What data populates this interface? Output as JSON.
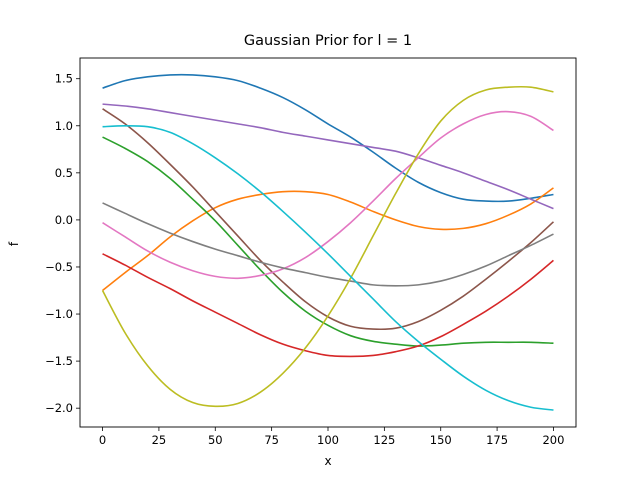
{
  "chart_data": {
    "type": "line",
    "title": "Gaussian Prior for l = 1",
    "xlabel": "x",
    "ylabel": "f",
    "xlim": [
      -10,
      210
    ],
    "ylim": [
      -2.2,
      1.72
    ],
    "xticks": [
      0,
      25,
      50,
      75,
      100,
      125,
      150,
      175,
      200
    ],
    "yticks": [
      -2.0,
      -1.5,
      -1.0,
      -0.5,
      0.0,
      0.5,
      1.0,
      1.5
    ],
    "ytick_labels": [
      "−2.0",
      "−1.5",
      "−1.0",
      "−0.5",
      "0.0",
      "0.5",
      "1.0",
      "1.5"
    ],
    "grid": false,
    "legend": "none",
    "x": [
      0,
      10,
      20,
      30,
      40,
      50,
      60,
      70,
      80,
      90,
      100,
      110,
      120,
      130,
      140,
      150,
      160,
      170,
      180,
      190,
      200
    ],
    "series": [
      {
        "color": "#1f77b4",
        "values": [
          1.4,
          1.48,
          1.52,
          1.54,
          1.54,
          1.52,
          1.48,
          1.4,
          1.3,
          1.17,
          1.02,
          0.88,
          0.72,
          0.55,
          0.4,
          0.29,
          0.22,
          0.2,
          0.2,
          0.23,
          0.27
        ]
      },
      {
        "color": "#ff7f0e",
        "values": [
          -0.75,
          -0.56,
          -0.38,
          -0.18,
          -0.01,
          0.13,
          0.22,
          0.27,
          0.3,
          0.3,
          0.27,
          0.19,
          0.09,
          0.0,
          -0.07,
          -0.1,
          -0.09,
          -0.04,
          0.05,
          0.17,
          0.34
        ]
      },
      {
        "color": "#2ca02c",
        "values": [
          0.88,
          0.76,
          0.62,
          0.44,
          0.22,
          -0.01,
          -0.27,
          -0.53,
          -0.77,
          -0.97,
          -1.12,
          -1.23,
          -1.29,
          -1.32,
          -1.34,
          -1.33,
          -1.31,
          -1.3,
          -1.3,
          -1.3,
          -1.31
        ]
      },
      {
        "color": "#d62728",
        "values": [
          -0.36,
          -0.48,
          -0.61,
          -0.73,
          -0.86,
          -0.98,
          -1.1,
          -1.22,
          -1.32,
          -1.39,
          -1.44,
          -1.45,
          -1.44,
          -1.4,
          -1.34,
          -1.24,
          -1.11,
          -0.97,
          -0.81,
          -0.63,
          -0.43
        ]
      },
      {
        "color": "#9467bd",
        "values": [
          1.23,
          1.21,
          1.18,
          1.14,
          1.1,
          1.06,
          1.02,
          0.98,
          0.93,
          0.89,
          0.85,
          0.81,
          0.77,
          0.73,
          0.66,
          0.58,
          0.5,
          0.41,
          0.32,
          0.22,
          0.12
        ]
      },
      {
        "color": "#8c564b",
        "values": [
          1.18,
          1.02,
          0.82,
          0.59,
          0.35,
          0.09,
          -0.17,
          -0.43,
          -0.66,
          -0.87,
          -1.03,
          -1.13,
          -1.16,
          -1.15,
          -1.08,
          -0.96,
          -0.81,
          -0.63,
          -0.44,
          -0.24,
          -0.02
        ]
      },
      {
        "color": "#e377c2",
        "values": [
          -0.03,
          -0.18,
          -0.33,
          -0.45,
          -0.54,
          -0.6,
          -0.62,
          -0.59,
          -0.52,
          -0.4,
          -0.23,
          -0.03,
          0.2,
          0.44,
          0.66,
          0.87,
          1.02,
          1.12,
          1.15,
          1.1,
          0.95
        ]
      },
      {
        "color": "#7f7f7f",
        "values": [
          0.18,
          0.07,
          -0.04,
          -0.14,
          -0.23,
          -0.31,
          -0.38,
          -0.45,
          -0.51,
          -0.56,
          -0.61,
          -0.65,
          -0.69,
          -0.7,
          -0.69,
          -0.65,
          -0.58,
          -0.49,
          -0.38,
          -0.27,
          -0.15
        ]
      },
      {
        "color": "#bcbd22",
        "values": [
          -0.75,
          -1.2,
          -1.55,
          -1.8,
          -1.94,
          -1.98,
          -1.95,
          -1.83,
          -1.63,
          -1.36,
          -1.02,
          -0.62,
          -0.17,
          0.28,
          0.7,
          1.05,
          1.27,
          1.38,
          1.41,
          1.41,
          1.36
        ]
      },
      {
        "color": "#17becf",
        "values": [
          0.99,
          1.0,
          0.99,
          0.93,
          0.81,
          0.66,
          0.49,
          0.3,
          0.09,
          -0.13,
          -0.36,
          -0.6,
          -0.84,
          -1.08,
          -1.29,
          -1.48,
          -1.66,
          -1.81,
          -1.92,
          -1.99,
          -2.02
        ]
      }
    ]
  }
}
